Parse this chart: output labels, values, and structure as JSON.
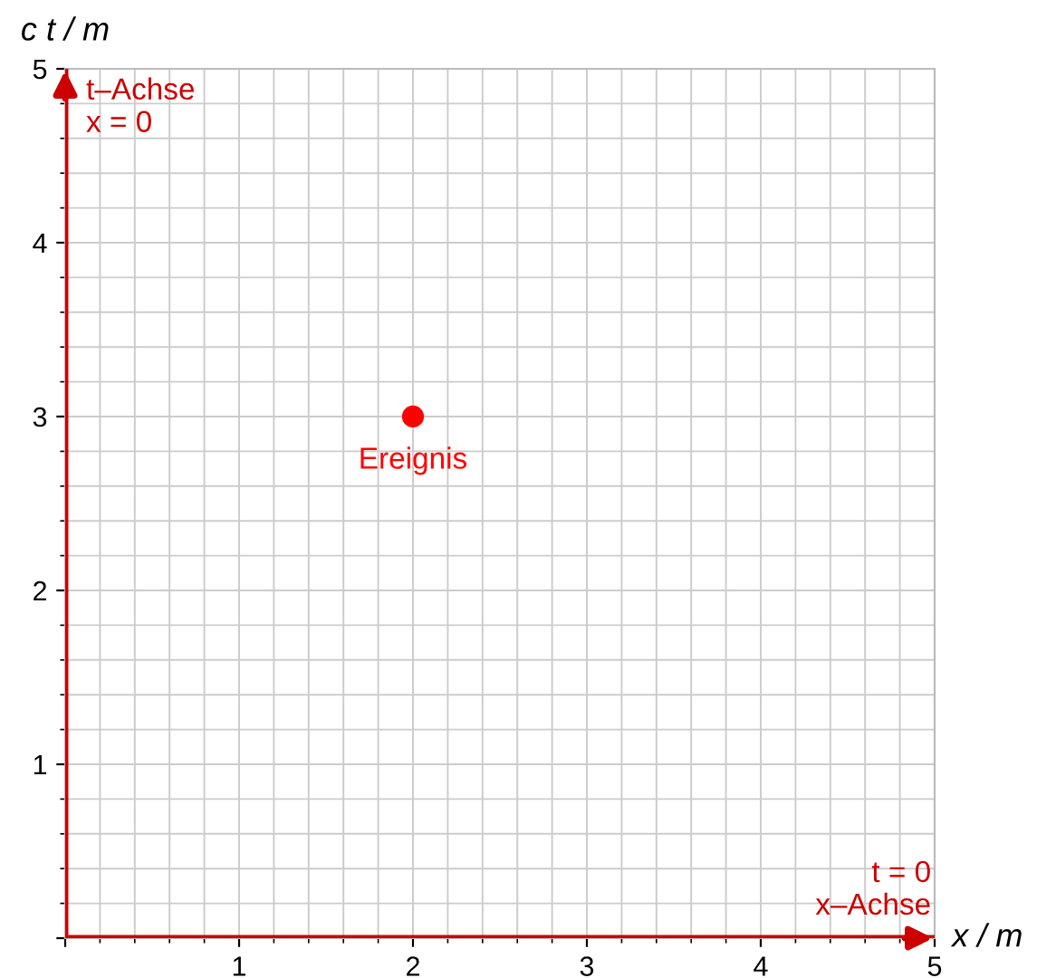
{
  "chart_data": {
    "type": "scatter",
    "xlabel": "x / m",
    "ylabel": "c t / m",
    "x": [
      2
    ],
    "values": [
      3
    ],
    "color": "#ff0000",
    "marker": "circle",
    "xlim": [
      0,
      5
    ],
    "ylim": [
      0,
      5
    ],
    "xticks": [
      {
        "value": 0,
        "label": null
      },
      1,
      2,
      3,
      4,
      5
    ],
    "yticks": [
      {
        "value": 0,
        "label": null
      },
      1,
      2,
      3,
      4,
      5
    ],
    "grid": true,
    "ref_lines": [
      {
        "axis": "x",
        "value": 0,
        "label": "t–Achse\nx = 0",
        "color": "#cc0000"
      },
      {
        "axis": "y",
        "value": 0,
        "label": "t = 0\nx–Achse",
        "color": "#cc0000"
      }
    ],
    "annotations": [
      {
        "text": "Ereignis",
        "x": 2,
        "y": 3
      }
    ]
  }
}
